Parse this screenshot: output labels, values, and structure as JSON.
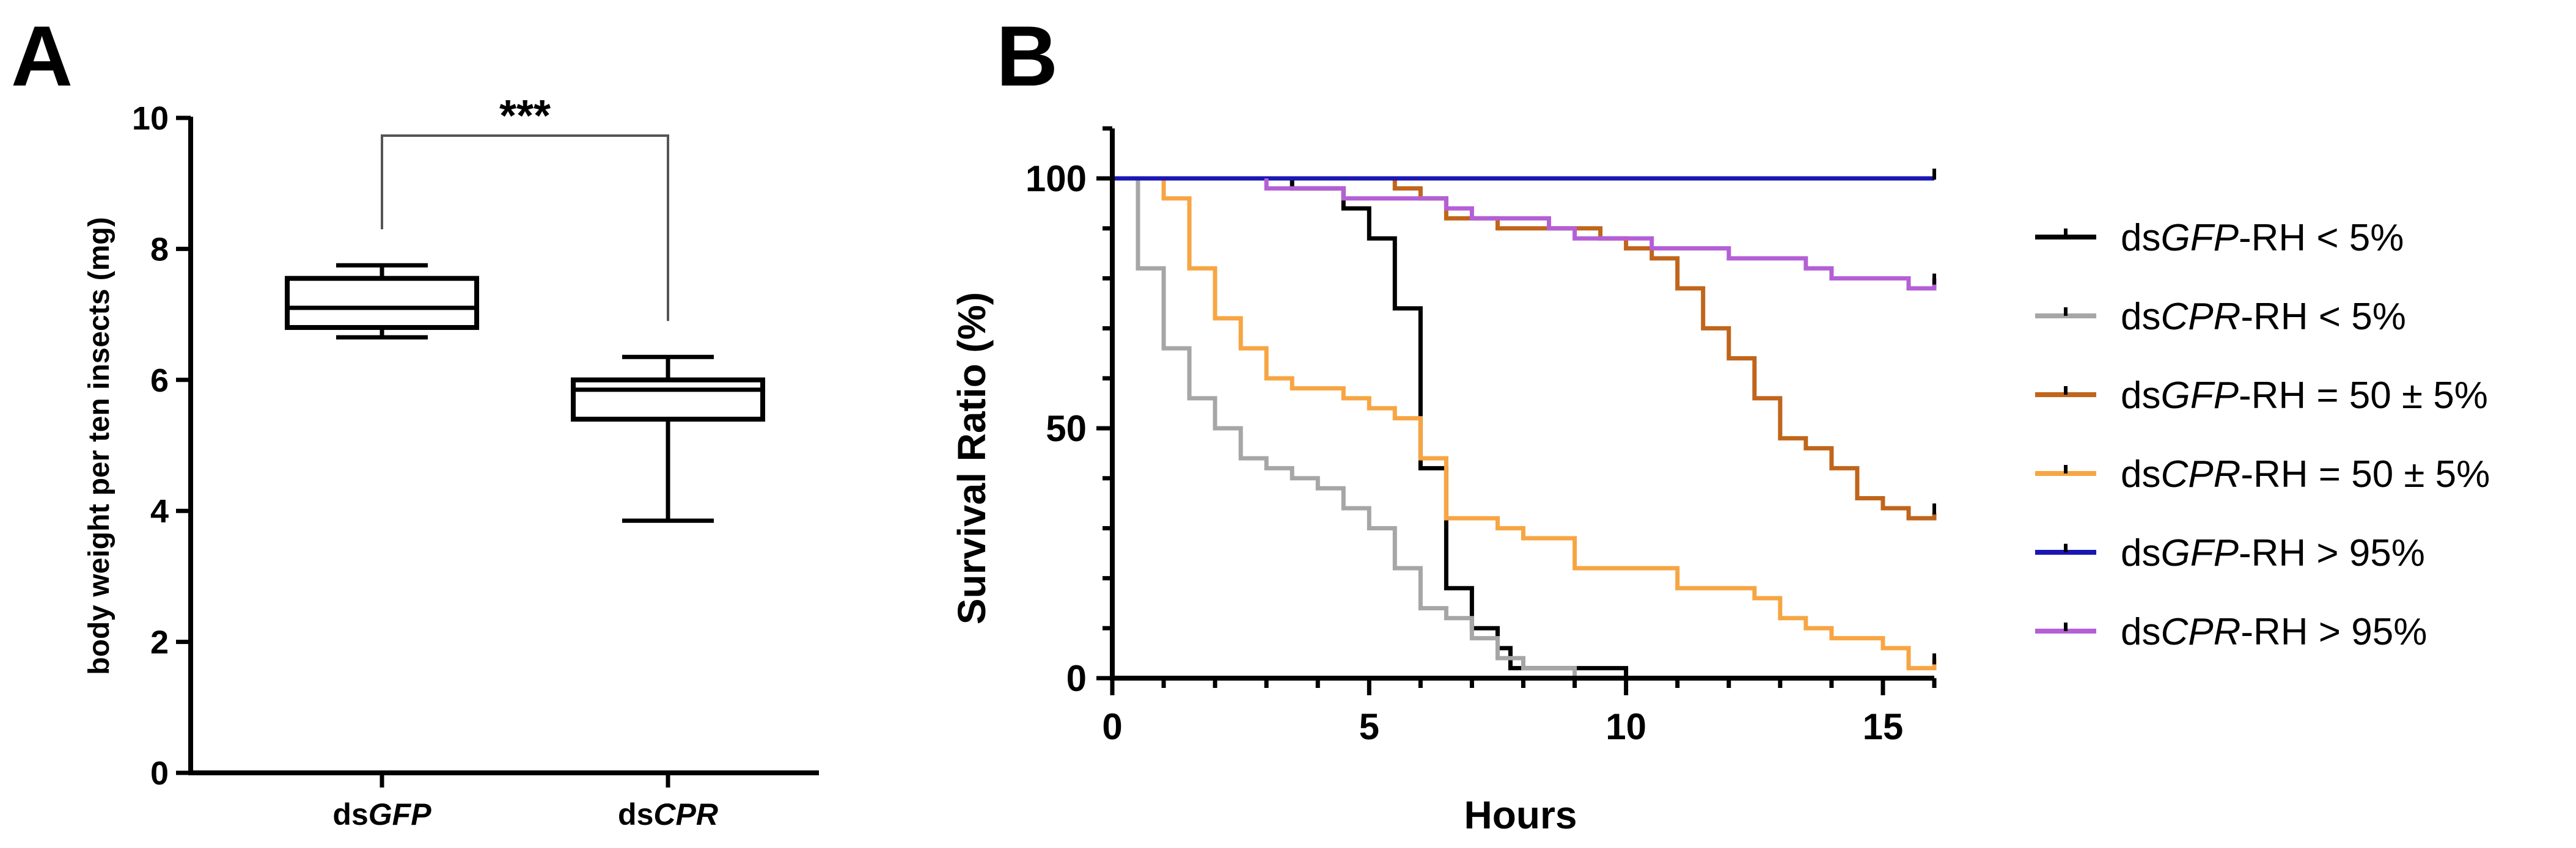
{
  "chart_data": [
    {
      "panel": "A",
      "type": "box",
      "ylabel": "body weight per ten insects (mg)",
      "ylim": [
        0,
        10
      ],
      "yticks": [
        "0",
        "2",
        "4",
        "6",
        "8",
        "10"
      ],
      "categories": [
        "dsGFP",
        "dsCPR"
      ],
      "category_parts": [
        {
          "plain": "ds",
          "italic": "GFP"
        },
        {
          "plain": "ds",
          "italic": "CPR"
        }
      ],
      "boxes": [
        {
          "name": "dsGFP",
          "min": 6.65,
          "q1": 6.8,
          "median": 7.1,
          "q3": 7.55,
          "max": 7.75
        },
        {
          "name": "dsCPR",
          "min": 3.85,
          "q1": 5.4,
          "median": 5.85,
          "q3": 6.0,
          "max": 6.35
        }
      ],
      "significance": "***"
    },
    {
      "panel": "B",
      "type": "line",
      "xlabel": "Hours",
      "ylabel": "Survival Ratio (%)",
      "xlim": [
        0,
        16
      ],
      "ylim": [
        0,
        110
      ],
      "xticks": [
        "0",
        "5",
        "10",
        "15"
      ],
      "yticks": [
        "0",
        "50",
        "100"
      ],
      "series": [
        {
          "name": "dsGFP-RH < 5%",
          "plain": "ds",
          "italic": "GFP",
          "rest": "-RH < 5%",
          "color": "#000000",
          "points": [
            [
              0,
              100
            ],
            [
              3.5,
              100
            ],
            [
              3.5,
              98
            ],
            [
              4.5,
              98
            ],
            [
              4.5,
              94
            ],
            [
              5,
              94
            ],
            [
              5,
              88
            ],
            [
              5.5,
              88
            ],
            [
              5.5,
              74
            ],
            [
              6,
              74
            ],
            [
              6,
              42
            ],
            [
              6.5,
              42
            ],
            [
              6.5,
              18
            ],
            [
              7,
              18
            ],
            [
              7,
              10
            ],
            [
              7.5,
              10
            ],
            [
              7.5,
              6
            ],
            [
              7.75,
              6
            ],
            [
              7.75,
              2
            ],
            [
              10,
              2
            ],
            [
              10,
              0
            ]
          ]
        },
        {
          "name": "dsCPR-RH < 5%",
          "plain": "ds",
          "italic": "CPR",
          "rest": "-RH < 5%",
          "color": "#a6a6a6",
          "points": [
            [
              0.5,
              100
            ],
            [
              0.5,
              82
            ],
            [
              1,
              82
            ],
            [
              1,
              66
            ],
            [
              1.5,
              66
            ],
            [
              1.5,
              56
            ],
            [
              2,
              56
            ],
            [
              2,
              50
            ],
            [
              2.5,
              50
            ],
            [
              2.5,
              44
            ],
            [
              3,
              44
            ],
            [
              3,
              42
            ],
            [
              3.5,
              42
            ],
            [
              3.5,
              40
            ],
            [
              4,
              40
            ],
            [
              4,
              38
            ],
            [
              4.5,
              38
            ],
            [
              4.5,
              34
            ],
            [
              5,
              34
            ],
            [
              5,
              30
            ],
            [
              5.5,
              30
            ],
            [
              5.5,
              22
            ],
            [
              6,
              22
            ],
            [
              6,
              14
            ],
            [
              6.5,
              14
            ],
            [
              6.5,
              12
            ],
            [
              7,
              12
            ],
            [
              7,
              8
            ],
            [
              7.5,
              8
            ],
            [
              7.5,
              4
            ],
            [
              8,
              4
            ],
            [
              8,
              2
            ],
            [
              9,
              2
            ],
            [
              9,
              0
            ]
          ]
        },
        {
          "name": "dsGFP-RH = 50 ± 5%",
          "plain": "ds",
          "italic": "GFP",
          "rest": "-RH = 50 ± 5%",
          "color": "#c0651b",
          "points": [
            [
              0,
              100
            ],
            [
              5.5,
              100
            ],
            [
              5.5,
              98
            ],
            [
              6,
              98
            ],
            [
              6,
              96
            ],
            [
              6.5,
              96
            ],
            [
              6.5,
              92
            ],
            [
              7.5,
              92
            ],
            [
              7.5,
              90
            ],
            [
              9.5,
              90
            ],
            [
              9.5,
              88
            ],
            [
              10,
              88
            ],
            [
              10,
              86
            ],
            [
              10.5,
              86
            ],
            [
              10.5,
              84
            ],
            [
              11,
              84
            ],
            [
              11,
              78
            ],
            [
              11.5,
              78
            ],
            [
              11.5,
              70
            ],
            [
              12,
              70
            ],
            [
              12,
              64
            ],
            [
              12.5,
              64
            ],
            [
              12.5,
              56
            ],
            [
              13,
              56
            ],
            [
              13,
              48
            ],
            [
              13.5,
              48
            ],
            [
              13.5,
              46
            ],
            [
              14,
              46
            ],
            [
              14,
              42
            ],
            [
              14.5,
              42
            ],
            [
              14.5,
              36
            ],
            [
              15,
              36
            ],
            [
              15,
              34
            ],
            [
              15.5,
              34
            ],
            [
              15.5,
              32
            ],
            [
              16,
              32
            ],
            [
              16,
              33
            ]
          ]
        },
        {
          "name": "dsCPR-RH = 50 ± 5%",
          "plain": "ds",
          "italic": "CPR",
          "rest": "-RH = 50 ± 5%",
          "color": "#f7a543",
          "points": [
            [
              0,
              100
            ],
            [
              1,
              100
            ],
            [
              1,
              96
            ],
            [
              1.5,
              96
            ],
            [
              1.5,
              82
            ],
            [
              2,
              82
            ],
            [
              2,
              72
            ],
            [
              2.5,
              72
            ],
            [
              2.5,
              66
            ],
            [
              3,
              66
            ],
            [
              3,
              60
            ],
            [
              3.5,
              60
            ],
            [
              3.5,
              58
            ],
            [
              4.5,
              58
            ],
            [
              4.5,
              56
            ],
            [
              5,
              56
            ],
            [
              5,
              54
            ],
            [
              5.5,
              54
            ],
            [
              5.5,
              52
            ],
            [
              6,
              52
            ],
            [
              6,
              44
            ],
            [
              6.5,
              44
            ],
            [
              6.5,
              32
            ],
            [
              7.5,
              32
            ],
            [
              7.5,
              30
            ],
            [
              8,
              30
            ],
            [
              8,
              28
            ],
            [
              9,
              28
            ],
            [
              9,
              22
            ],
            [
              11,
              22
            ],
            [
              11,
              18
            ],
            [
              12.5,
              18
            ],
            [
              12.5,
              16
            ],
            [
              13,
              16
            ],
            [
              13,
              12
            ],
            [
              13.5,
              12
            ],
            [
              13.5,
              10
            ],
            [
              14,
              10
            ],
            [
              14,
              8
            ],
            [
              15,
              8
            ],
            [
              15,
              6
            ],
            [
              15.5,
              6
            ],
            [
              15.5,
              2
            ],
            [
              16,
              2
            ],
            [
              16,
              4
            ]
          ]
        },
        {
          "name": "dsGFP-RH > 95%",
          "plain": "ds",
          "italic": "GFP",
          "rest": "-RH > 95%",
          "color": "#1a16b4",
          "points": [
            [
              0,
              100
            ],
            [
              16,
              100
            ]
          ]
        },
        {
          "name": "dsCPR-RH > 95%",
          "plain": "ds",
          "italic": "CPR",
          "rest": "-RH > 95%",
          "color": "#b45fd6",
          "points": [
            [
              3,
              100
            ],
            [
              3,
              98
            ],
            [
              4.5,
              98
            ],
            [
              4.5,
              96
            ],
            [
              6.5,
              96
            ],
            [
              6.5,
              94
            ],
            [
              7,
              94
            ],
            [
              7,
              92
            ],
            [
              8.5,
              92
            ],
            [
              8.5,
              90
            ],
            [
              9,
              90
            ],
            [
              9,
              88
            ],
            [
              10.5,
              88
            ],
            [
              10.5,
              86
            ],
            [
              12,
              86
            ],
            [
              12,
              84
            ],
            [
              13.5,
              84
            ],
            [
              13.5,
              82
            ],
            [
              14,
              82
            ],
            [
              14,
              80
            ],
            [
              15.5,
              80
            ],
            [
              15.5,
              78
            ],
            [
              16,
              78
            ],
            [
              16,
              80
            ]
          ]
        }
      ]
    }
  ]
}
